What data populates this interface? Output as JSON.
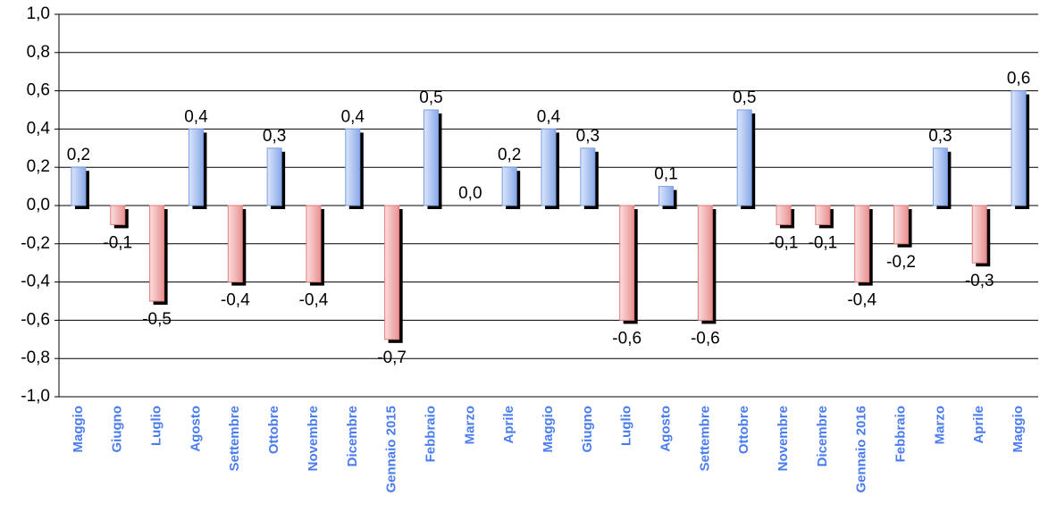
{
  "chart_data": {
    "type": "bar",
    "categories": [
      "Maggio",
      "Giugno",
      "Luglio",
      "Agosto",
      "Settembre",
      "Ottobre",
      "Novembre",
      "Dicembre",
      "Gennaio 2015",
      "Febbraio",
      "Marzo",
      "Aprile",
      "Maggio",
      "Giugno",
      "Luglio",
      "Agosto",
      "Settembre",
      "Ottobre",
      "Novembre",
      "Dicembre",
      "Gennaio 2016",
      "Febbraio",
      "Marzo",
      "Aprile",
      "Maggio"
    ],
    "values": [
      0.2,
      -0.1,
      -0.5,
      0.4,
      -0.4,
      0.3,
      -0.4,
      0.4,
      -0.7,
      0.5,
      0.0,
      0.2,
      0.4,
      0.3,
      -0.6,
      0.1,
      -0.6,
      0.5,
      -0.1,
      -0.1,
      -0.4,
      -0.2,
      0.3,
      -0.3,
      0.6
    ],
    "value_labels": [
      "0,2",
      "-0,1",
      "-0,5",
      "0,4",
      "-0,4",
      "0,3",
      "-0,4",
      "0,4",
      "-0,7",
      "0,5",
      "0,0",
      "0,2",
      "0,4",
      "0,3",
      "-0,6",
      "0,1",
      "-0,6",
      "0,5",
      "-0,1",
      "-0,1",
      "-0,4",
      "-0,2",
      "0,3",
      "-0,3",
      "0,6"
    ],
    "positive_color": "#7a9de0",
    "negative_color": "#e07a7a",
    "ylim": [
      -1.0,
      1.0
    ],
    "yticks": [
      {
        "value": -1.0,
        "label": "-1,0"
      },
      {
        "value": -0.8,
        "label": "-0,8"
      },
      {
        "value": -0.6,
        "label": "-0,6"
      },
      {
        "value": -0.4,
        "label": "-0,4"
      },
      {
        "value": -0.2,
        "label": "-0,2"
      },
      {
        "value": 0.0,
        "label": "0,0"
      },
      {
        "value": 0.2,
        "label": "0,2"
      },
      {
        "value": 0.4,
        "label": "0,4"
      },
      {
        "value": 0.6,
        "label": "0,6"
      },
      {
        "value": 0.8,
        "label": "0,8"
      },
      {
        "value": 1.0,
        "label": "1,0"
      }
    ],
    "grid": true
  }
}
